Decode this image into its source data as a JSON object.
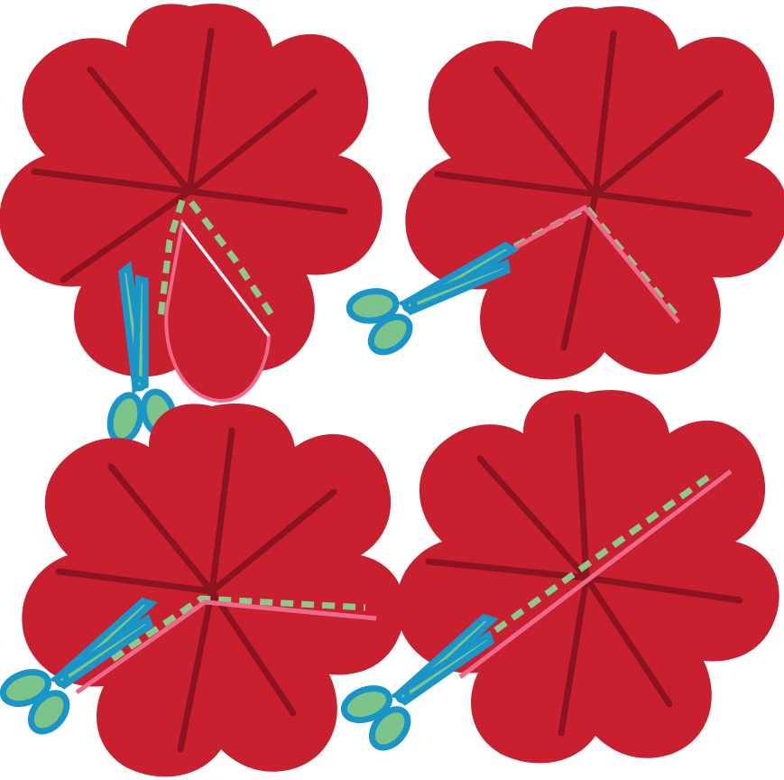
{
  "figure": {
    "description_items": [
      {
        "name": "step-1",
        "label": ""
      },
      {
        "name": "step-2",
        "label": ""
      },
      {
        "name": "step-3",
        "label": ""
      },
      {
        "name": "step-4",
        "label": ""
      }
    ],
    "colors": {
      "flower_fill": "#c8202f",
      "crease": "#8b1420",
      "cut_line": "#ee6a8a",
      "dashed_line": "#8dc98a",
      "scissors_blade": "#1a95c8",
      "scissors_handle_fill": "#7cc48a",
      "background": "#ffffff"
    },
    "icons": [
      "scissors-icon"
    ]
  }
}
